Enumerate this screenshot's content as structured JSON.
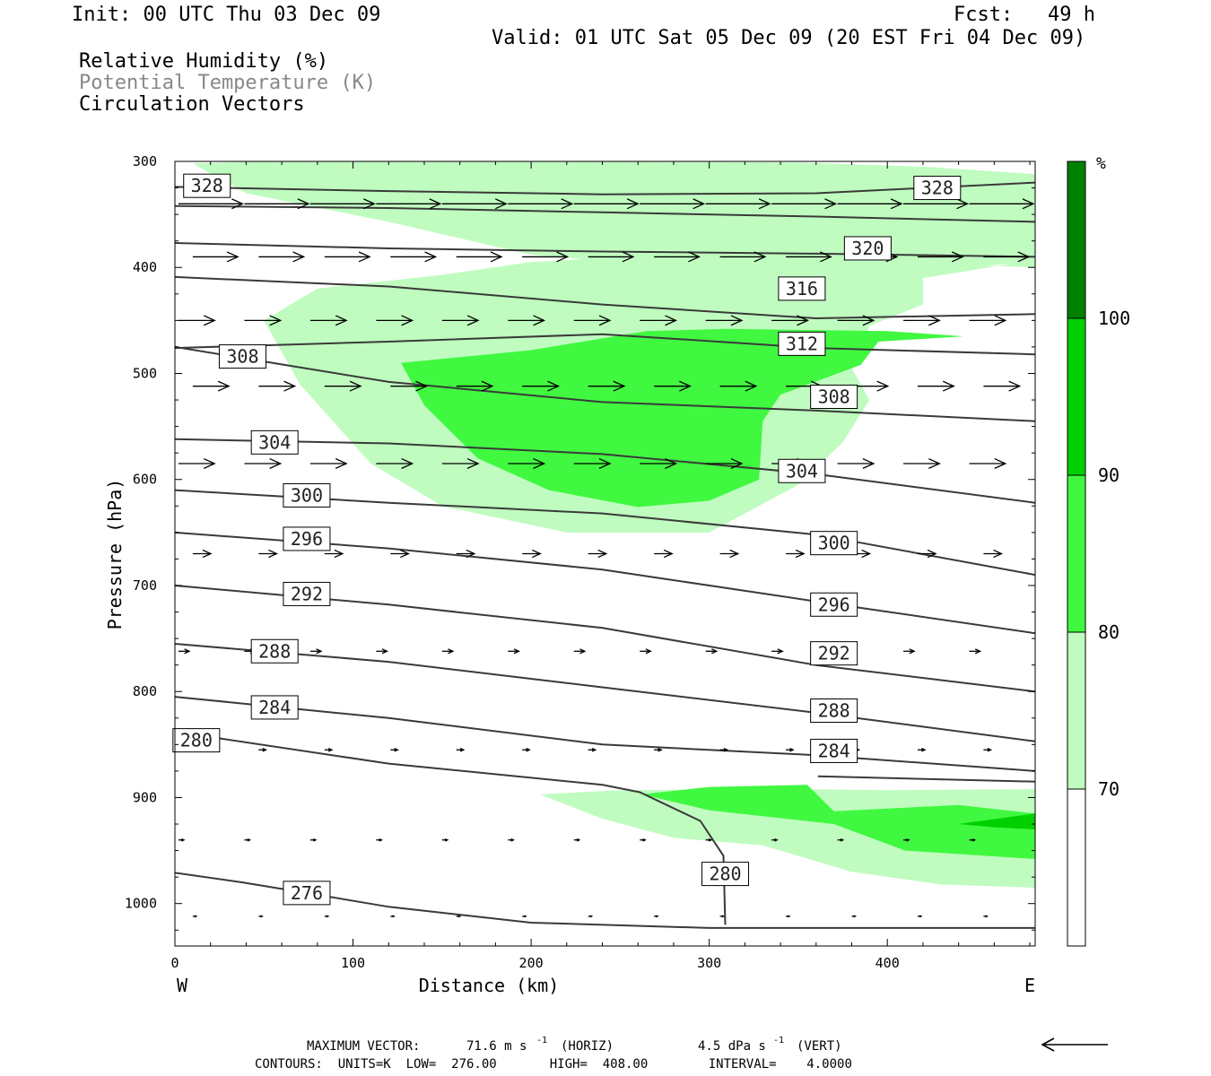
{
  "header": {
    "init": "Init: 00 UTC Thu 03 Dec 09",
    "fcst_label": "Fcst:",
    "fcst_value": "49 h",
    "valid": "Valid: 01 UTC Sat 05 Dec 09 (20 EST Fri 04 Dec 09)",
    "fields": [
      "Relative Humidity (%)",
      "Potential Temperature (K)",
      "Circulation Vectors"
    ]
  },
  "colors": {
    "rh_70": "#c0fcc0",
    "rh_80": "#40f840",
    "rh_90": "#00d000",
    "rh_100": "#008000",
    "isentrope": "#3a3a3a",
    "field_label_gray": "#888888"
  },
  "chart_data": {
    "type": "cross-section",
    "xlabel": "Distance (km)",
    "ylabel": "Pressure (hPa)",
    "xlim": [
      0,
      483
    ],
    "ylim": [
      1040,
      300
    ],
    "x_ticks": [
      "0",
      "100",
      "200",
      "300",
      "400"
    ],
    "y_ticks": [
      "300",
      "400",
      "500",
      "600",
      "700",
      "800",
      "900",
      "1000"
    ],
    "x_end_left": "W",
    "x_end_right": "E",
    "colorbar": {
      "unit": "%",
      "levels": [
        "70",
        "80",
        "90",
        "100"
      ]
    },
    "isentropes": [
      {
        "value": 328,
        "points": [
          [
            0,
            324
          ],
          [
            120,
            328
          ],
          [
            240,
            331
          ],
          [
            360,
            330
          ],
          [
            483,
            320
          ]
        ],
        "labels": [
          [
            18,
            323
          ],
          [
            428,
            325
          ]
        ]
      },
      {
        "value": 324,
        "points": [
          [
            0,
            342
          ],
          [
            120,
            344
          ],
          [
            240,
            348
          ],
          [
            360,
            352
          ],
          [
            483,
            357
          ]
        ],
        "labels": []
      },
      {
        "value": 320,
        "points": [
          [
            0,
            377
          ],
          [
            120,
            382
          ],
          [
            240,
            385
          ],
          [
            360,
            387
          ],
          [
            483,
            390
          ]
        ],
        "labels": [
          [
            389,
            382
          ]
        ]
      },
      {
        "value": 316,
        "points": [
          [
            0,
            409
          ],
          [
            120,
            418
          ],
          [
            240,
            435
          ],
          [
            360,
            448
          ],
          [
            483,
            444
          ]
        ],
        "labels": [
          [
            352,
            420
          ]
        ]
      },
      {
        "value": 312,
        "points": [
          [
            0,
            476
          ],
          [
            120,
            470
          ],
          [
            240,
            463
          ],
          [
            360,
            476
          ],
          [
            483,
            482
          ]
        ],
        "labels": [
          [
            352,
            472
          ]
        ]
      },
      {
        "value": 308,
        "points": [
          [
            0,
            475
          ],
          [
            120,
            508
          ],
          [
            240,
            527
          ],
          [
            360,
            535
          ],
          [
            483,
            545
          ]
        ],
        "labels": [
          [
            38,
            484
          ],
          [
            370,
            522
          ]
        ]
      },
      {
        "value": 304,
        "points": [
          [
            0,
            562
          ],
          [
            120,
            566
          ],
          [
            240,
            576
          ],
          [
            360,
            595
          ],
          [
            483,
            622
          ]
        ],
        "labels": [
          [
            56,
            565
          ],
          [
            352,
            592
          ]
        ]
      },
      {
        "value": 300,
        "points": [
          [
            0,
            610
          ],
          [
            120,
            622
          ],
          [
            240,
            632
          ],
          [
            360,
            652
          ],
          [
            483,
            690
          ]
        ],
        "labels": [
          [
            74,
            615
          ],
          [
            370,
            660
          ]
        ]
      },
      {
        "value": 296,
        "points": [
          [
            0,
            650
          ],
          [
            120,
            665
          ],
          [
            240,
            685
          ],
          [
            360,
            715
          ],
          [
            483,
            745
          ]
        ],
        "labels": [
          [
            74,
            656
          ],
          [
            370,
            718
          ]
        ]
      },
      {
        "value": 292,
        "points": [
          [
            0,
            700
          ],
          [
            120,
            718
          ],
          [
            240,
            740
          ],
          [
            360,
            775
          ],
          [
            483,
            800
          ]
        ],
        "labels": [
          [
            74,
            708
          ],
          [
            370,
            764
          ]
        ]
      },
      {
        "value": 288,
        "points": [
          [
            0,
            755
          ],
          [
            120,
            772
          ],
          [
            240,
            796
          ],
          [
            360,
            820
          ],
          [
            483,
            847
          ]
        ],
        "labels": [
          [
            56,
            762
          ],
          [
            370,
            818
          ]
        ]
      },
      {
        "value": 284,
        "points": [
          [
            0,
            805
          ],
          [
            120,
            825
          ],
          [
            240,
            850
          ],
          [
            360,
            860
          ],
          [
            483,
            875
          ]
        ],
        "labels": [
          [
            56,
            815
          ],
          [
            370,
            856
          ]
        ]
      },
      {
        "value": 280,
        "points": [
          [
            0,
            838
          ],
          [
            120,
            868
          ],
          [
            240,
            888
          ],
          [
            261,
            895
          ],
          [
            295,
            922
          ],
          [
            308,
            955
          ],
          [
            309,
            1020
          ]
        ],
        "labels": [
          [
            12,
            846
          ],
          [
            309,
            972
          ]
        ]
      },
      {
        "value": 280,
        "points": [
          [
            361,
            880
          ],
          [
            483,
            885
          ]
        ],
        "labels": []
      },
      {
        "value": 276,
        "points": [
          [
            0,
            971
          ],
          [
            38,
            980
          ],
          [
            74,
            990
          ],
          [
            120,
            1003
          ],
          [
            200,
            1018
          ],
          [
            300,
            1023
          ],
          [
            483,
            1023
          ]
        ],
        "labels": [
          [
            74,
            990
          ]
        ]
      }
    ],
    "rh_regions": [
      {
        "level": "70-80",
        "points": [
          [
            10,
            302
          ],
          [
            60,
            299
          ],
          [
            200,
            300
          ],
          [
            350,
            301
          ],
          [
            420,
            305
          ],
          [
            483,
            312
          ],
          [
            483,
            395
          ],
          [
            440,
            400
          ],
          [
            320,
            405
          ],
          [
            200,
            388
          ],
          [
            120,
            357
          ],
          [
            40,
            330
          ]
        ]
      },
      {
        "level": "70-80",
        "points": [
          [
            50,
            450
          ],
          [
            80,
            420
          ],
          [
            150,
            407
          ],
          [
            200,
            395
          ],
          [
            300,
            385
          ],
          [
            400,
            395
          ],
          [
            483,
            400
          ],
          [
            483,
            393
          ],
          [
            420,
            410
          ],
          [
            420,
            435
          ],
          [
            390,
            455
          ],
          [
            380,
            495
          ],
          [
            390,
            525
          ],
          [
            375,
            565
          ],
          [
            350,
            605
          ],
          [
            300,
            650
          ],
          [
            270,
            650
          ],
          [
            220,
            650
          ],
          [
            150,
            625
          ],
          [
            110,
            585
          ],
          [
            70,
            510
          ]
        ]
      },
      {
        "level": "80-90",
        "points": [
          [
            127,
            490
          ],
          [
            200,
            478
          ],
          [
            265,
            460
          ],
          [
            310,
            458
          ],
          [
            400,
            460
          ],
          [
            443,
            465
          ],
          [
            395,
            470
          ],
          [
            385,
            492
          ],
          [
            340,
            520
          ],
          [
            330,
            545
          ],
          [
            328,
            600
          ],
          [
            300,
            620
          ],
          [
            260,
            626
          ],
          [
            210,
            610
          ],
          [
            170,
            580
          ],
          [
            140,
            530
          ]
        ]
      },
      {
        "level": "70-80",
        "points": [
          [
            205,
            897
          ],
          [
            250,
            893
          ],
          [
            350,
            892
          ],
          [
            400,
            893
          ],
          [
            483,
            892
          ],
          [
            483,
            985
          ],
          [
            430,
            982
          ],
          [
            380,
            970
          ],
          [
            330,
            945
          ],
          [
            280,
            938
          ],
          [
            240,
            920
          ]
        ]
      },
      {
        "level": "80-90",
        "points": [
          [
            262,
            897
          ],
          [
            300,
            890
          ],
          [
            355,
            888
          ],
          [
            370,
            913
          ],
          [
            440,
            907
          ],
          [
            483,
            915
          ],
          [
            483,
            958
          ],
          [
            410,
            950
          ],
          [
            370,
            925
          ],
          [
            300,
            912
          ]
        ]
      },
      {
        "level": "90-100",
        "points": [
          [
            440,
            925
          ],
          [
            483,
            915
          ],
          [
            483,
            930
          ],
          [
            460,
            928
          ]
        ]
      }
    ],
    "vectors": {
      "rows": [
        {
          "p": 340,
          "u": 71,
          "w": 0
        },
        {
          "p": 390,
          "u": 50,
          "w": 0
        },
        {
          "p": 450,
          "u": 40,
          "w": 0
        },
        {
          "p": 512,
          "u": 40,
          "w": 0
        },
        {
          "p": 585,
          "u": 40,
          "w": 0
        },
        {
          "p": 670,
          "u": 20,
          "w": 0
        },
        {
          "p": 762,
          "u": 12,
          "w": 0
        },
        {
          "p": 855,
          "u": 8,
          "w": 0
        },
        {
          "p": 940,
          "u": 6,
          "w": 0
        },
        {
          "p": 1012,
          "u": 4,
          "w": 0
        }
      ],
      "x_spacing_km": 37
    },
    "footer": {
      "max_vector_label": "MAXIMUM VECTOR:",
      "horiz_value": "71.6 m s",
      "horiz_unit": "-1",
      "horiz_tag": "(HORIZ)",
      "vert_value": "4.5 dPa s",
      "vert_unit": "-1",
      "vert_tag": "(VERT)",
      "contours_line": "CONTOURS:  UNITS=K  LOW=  276.00       HIGH=  408.00        INTERVAL=    4.0000"
    }
  }
}
